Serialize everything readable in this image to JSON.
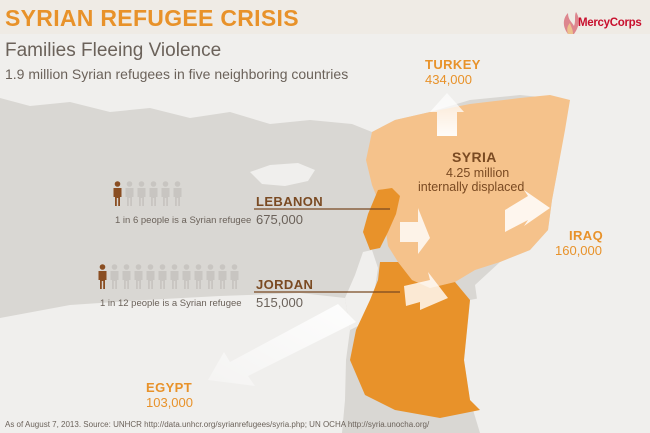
{
  "header": {
    "title": "SYRIAN REFUGEE CRISIS",
    "subtitle": "Families Fleeing Violence",
    "tagline": "1.9 million Syrian refugees in five neighboring countries"
  },
  "logo": {
    "text": "MercyCorps",
    "icon": "mercycorps-logo-icon",
    "color": "#c8102e"
  },
  "countries": {
    "turkey": {
      "name": "TURKEY",
      "value": "434,000",
      "refugees": 434000
    },
    "iraq": {
      "name": "IRAQ",
      "value": "160,000",
      "refugees": 160000
    },
    "egypt": {
      "name": "EGYPT",
      "value": "103,000",
      "refugees": 103000
    },
    "lebanon": {
      "name": "LEBANON",
      "value": "675,000",
      "refugees": 675000,
      "ratio_text": "1 in 6 people is a Syrian refugee",
      "ratio": [
        1,
        6
      ]
    },
    "jordan": {
      "name": "JORDAN",
      "value": "515,000",
      "refugees": 515000,
      "ratio_text": "1 in 12 people is a Syrian refugee",
      "ratio": [
        1,
        12
      ]
    },
    "syria": {
      "name": "SYRIA",
      "value": "4.25 million",
      "description": "internally displaced"
    }
  },
  "source": "As of August 7, 2013. Source: UNHCR http://data.unhcr.org/syrianrefugees/syria.php; UN OCHA http://syria.unocha.org/",
  "colors": {
    "accent": "#e8922a",
    "syria": "#f5c28b",
    "land": "#f0efed",
    "sea": "#d9d7d3",
    "text_dark": "#7a4a22",
    "text_gray": "#6b625a",
    "refugee_icon": "#8a4e22",
    "person_icon": "#c8c5c1"
  }
}
